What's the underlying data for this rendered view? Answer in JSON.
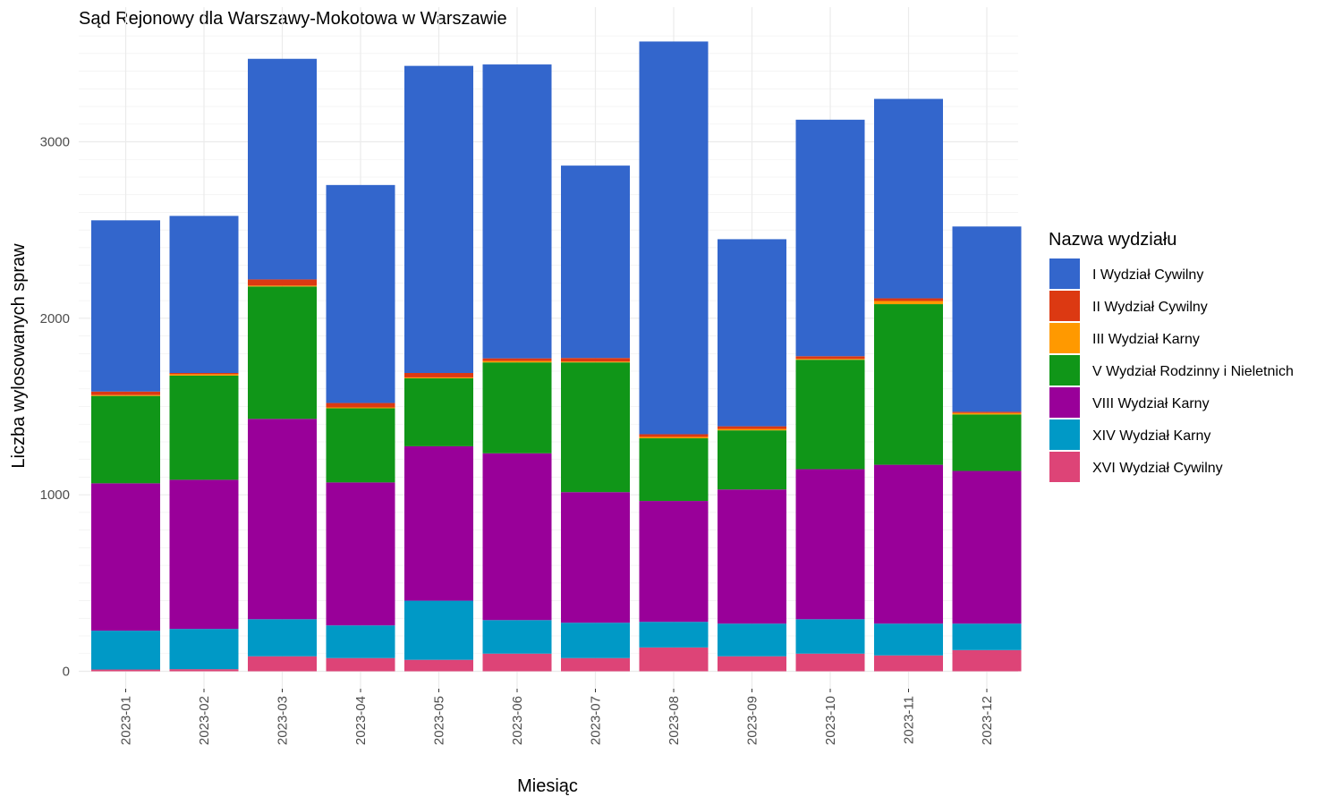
{
  "chart_data": {
    "type": "bar",
    "stacked": true,
    "title": "Sąd Rejonowy dla Warszawy-Mokotowa w Warszawie",
    "xlabel": "Miesiąc",
    "ylabel": "Liczba wylosowanych spraw",
    "ylim": [
      0,
      3600
    ],
    "yticks": [
      0,
      1000,
      2000,
      3000
    ],
    "grid": true,
    "legend_title": "Nazwa wydziału",
    "legend_position": "right",
    "categories": [
      "2023-01",
      "2023-02",
      "2023-03",
      "2023-04",
      "2023-05",
      "2023-06",
      "2023-07",
      "2023-08",
      "2023-09",
      "2023-10",
      "2023-11",
      "2023-12"
    ],
    "series": [
      {
        "name": "XVI Wydział Cywilny",
        "color": "#dd4477",
        "values": [
          10,
          12,
          85,
          75,
          65,
          100,
          75,
          135,
          85,
          100,
          90,
          120
        ]
      },
      {
        "name": "XIV Wydział Karny",
        "color": "#0099c6",
        "values": [
          220,
          228,
          210,
          185,
          335,
          190,
          200,
          145,
          185,
          195,
          180,
          150
        ]
      },
      {
        "name": "VIII Wydział Karny",
        "color": "#990099",
        "values": [
          835,
          845,
          1135,
          810,
          875,
          945,
          740,
          685,
          760,
          850,
          900,
          865
        ]
      },
      {
        "name": "V Wydział Rodzinny i Nieletnich",
        "color": "#109618",
        "values": [
          495,
          590,
          750,
          420,
          385,
          515,
          735,
          355,
          335,
          620,
          910,
          320
        ]
      },
      {
        "name": "III Wydział Karny",
        "color": "#ff9900",
        "values": [
          5,
          8,
          5,
          5,
          5,
          8,
          5,
          8,
          8,
          5,
          18,
          8
        ]
      },
      {
        "name": "II Wydział Cywilny",
        "color": "#dc3912",
        "values": [
          20,
          7,
          35,
          25,
          25,
          15,
          20,
          15,
          15,
          15,
          15,
          7
        ]
      },
      {
        "name": "I Wydział Cywilny",
        "color": "#3366cc",
        "values": [
          970,
          890,
          1250,
          1235,
          1740,
          1665,
          1090,
          2225,
          1060,
          1340,
          1130,
          1050
        ]
      }
    ],
    "legend_order": [
      "I Wydział Cywilny",
      "II Wydział Cywilny",
      "III Wydział Karny",
      "V Wydział Rodzinny i Nieletnich",
      "VIII Wydział Karny",
      "XIV Wydział Karny",
      "XVI Wydział Cywilny"
    ]
  }
}
